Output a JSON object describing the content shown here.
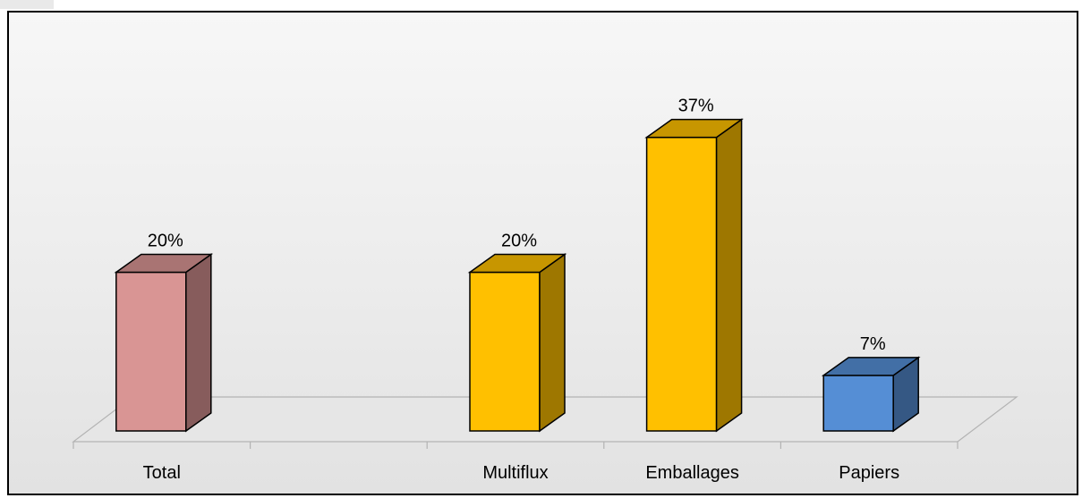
{
  "chart_data": {
    "type": "bar",
    "categories": [
      "Total",
      "",
      "Multiflux",
      "Emballages",
      "Papiers"
    ],
    "values": [
      20,
      null,
      20,
      37,
      7
    ],
    "data_labels": [
      "20%",
      "",
      "20%",
      "37%",
      "7%"
    ],
    "title": "",
    "xlabel": "",
    "ylabel": "",
    "ylim": [
      0,
      40
    ],
    "grid": false,
    "legend": "none",
    "three_d": true,
    "colors": [
      "#d99594",
      null,
      "#ffc000",
      "#ffc000",
      "#558ed5"
    ]
  }
}
